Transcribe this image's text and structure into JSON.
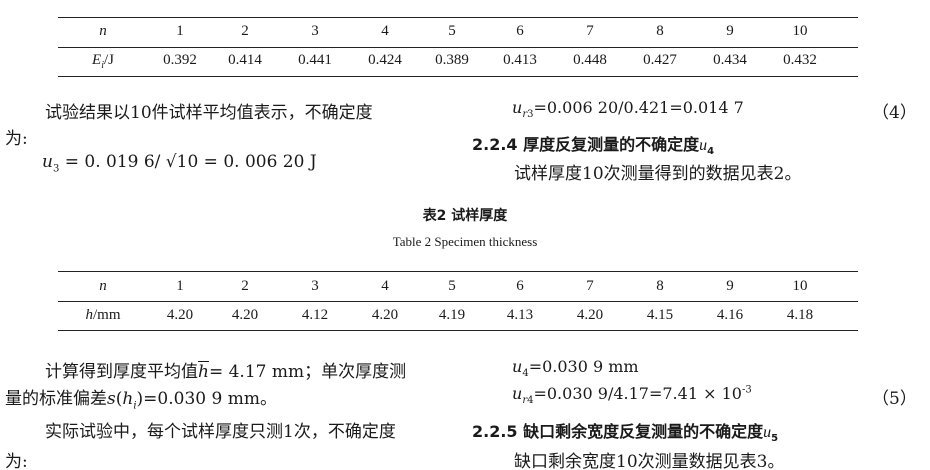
{
  "table1": {
    "row_header_1": "n",
    "row_header_2_var": "E",
    "row_header_2_sub": "i",
    "row_header_2_unit": "/J",
    "n": [
      "1",
      "2",
      "3",
      "4",
      "5",
      "6",
      "7",
      "8",
      "9",
      "10"
    ],
    "values": [
      "0.392",
      "0.414",
      "0.441",
      "0.424",
      "0.389",
      "0.413",
      "0.448",
      "0.427",
      "0.434",
      "0.432"
    ]
  },
  "left_col_1": {
    "para1": "试验结果以10件试样平均值表示，不确定度",
    "para1_cont": "为:",
    "formula_u3": "= 0. 019 6/ √10 = 0. 006 20 J"
  },
  "right_col_1": {
    "formula_ur3": "=0.006 20/0.421=0.014 7",
    "eq_no_4": "（4）",
    "section_224": "2.2.4  厚度反复测量的不确定度",
    "section_224_var": "u",
    "section_224_sub": "4",
    "para": "试样厚度10次测量得到的数据见表2。"
  },
  "table2": {
    "caption_zh": "表2   试样厚度",
    "caption_en": "Table 2   Specimen thickness",
    "row_header_1": "n",
    "row_header_2_var": "h",
    "row_header_2_unit": "/mm",
    "n": [
      "1",
      "2",
      "3",
      "4",
      "5",
      "6",
      "7",
      "8",
      "9",
      "10"
    ],
    "values": [
      "4.20",
      "4.20",
      "4.12",
      "4.20",
      "4.19",
      "4.13",
      "4.20",
      "4.15",
      "4.16",
      "4.18"
    ]
  },
  "left_col_2": {
    "para1_a": "计算得到厚度平均值",
    "para1_b": "= 4.17 mm；单次厚度测",
    "para1_cont_a": "量的标准偏差",
    "para1_cont_b": "=0.030 9 mm。",
    "para2": "实际试验中，每个试样厚度只测1次，不确定度",
    "para2_cont": "为:"
  },
  "right_col_2": {
    "formula_u4": "=0.030 9 mm",
    "formula_ur4": "=0.030 9/4.17=7.41 × 10",
    "formula_ur4_exp": "-3",
    "eq_no_5": "（5）",
    "section_225": "2.2.5  缺口剩余宽度反复测量的不确定度",
    "section_225_var": "u",
    "section_225_sub": "5",
    "para": "缺口剩余宽度10次测量数据见表3。"
  }
}
